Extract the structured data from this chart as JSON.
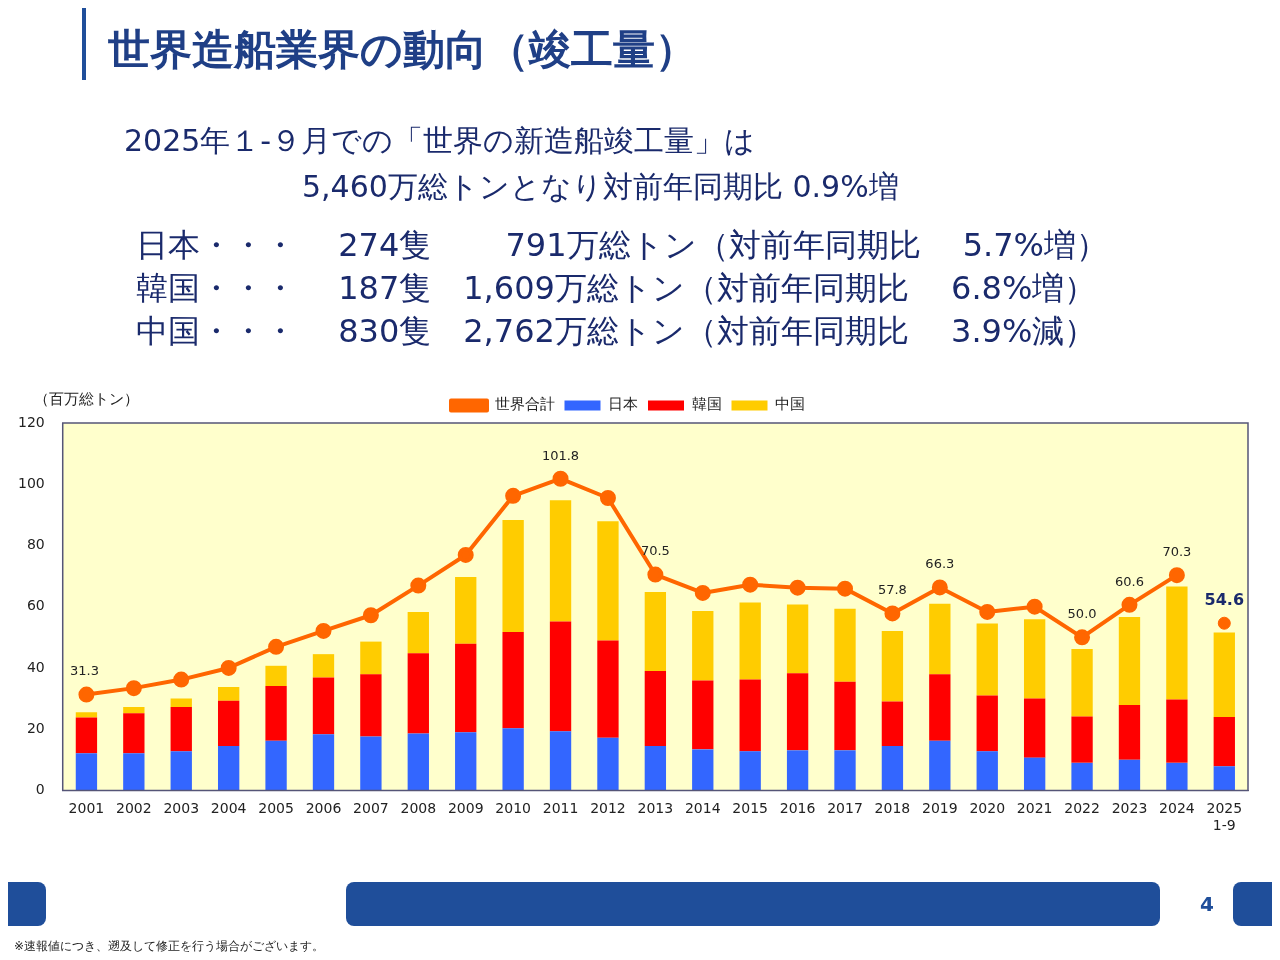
{
  "chart_data": {
    "type": "bar",
    "title": "世界造船業界の動向（竣工量）",
    "subtitle": "2025年１-９月での「世界の新造船竣工量」は\n5,460万総トンとなり対前年同期比 0.9%増",
    "annotations": [
      "日本・・・　 274隻　　 791万総トン（対前年同期比　 5.7%増）",
      "韓国・・・　 187隻　1,609万総トン（対前年同期比　 6.8%増）",
      "中国・・・　 830隻　2,762万総トン（対前年同期比　 3.9%減）",
      "※速報値につき、遡及して修正を行う場合がございます。",
      "4"
    ],
    "ylabel": "（百万総トン）",
    "categories": [
      "2001",
      "2002",
      "2003",
      "2004",
      "2005",
      "2006",
      "2007",
      "2008",
      "2009",
      "2010",
      "2011",
      "2012",
      "2013",
      "2014",
      "2015",
      "2016",
      "2017",
      "2018",
      "2019",
      "2020",
      "2021",
      "2022",
      "2023",
      "2024",
      "2025\n1-9"
    ],
    "stacked": true,
    "ylim": [
      0,
      120
    ],
    "yticks": [
      0,
      20,
      40,
      60,
      80,
      100,
      120
    ],
    "grid": false,
    "legend": "top",
    "series": [
      {
        "name": "日本",
        "color": "#3366ff",
        "values": [
          12.1,
          12.1,
          12.8,
          14.5,
          16.2,
          18.3,
          17.6,
          18.6,
          19.0,
          20.3,
          19.3,
          17.2,
          14.5,
          13.4,
          12.8,
          13.1,
          13.1,
          14.5,
          16.2,
          12.8,
          10.7,
          9.0,
          10.0,
          9.0,
          7.9
        ]
      },
      {
        "name": "韓国",
        "color": "#ff0000",
        "values": [
          11.7,
          13.1,
          14.4,
          14.8,
          17.9,
          18.6,
          20.3,
          26.2,
          28.9,
          31.4,
          35.9,
          31.8,
          24.5,
          22.5,
          23.4,
          25.2,
          22.4,
          14.5,
          21.7,
          18.2,
          19.3,
          15.1,
          17.9,
          20.7,
          16.1
        ]
      },
      {
        "name": "中国",
        "color": "#ffcc00",
        "values": [
          1.7,
          2.0,
          2.8,
          4.5,
          6.6,
          7.6,
          10.7,
          13.5,
          21.8,
          36.6,
          39.6,
          38.9,
          25.8,
          22.7,
          25.2,
          22.4,
          23.8,
          23.1,
          23.1,
          23.5,
          25.9,
          22.1,
          28.7,
          36.9,
          27.6
        ]
      },
      {
        "name": "世界合計",
        "type": "line",
        "color": "#ff6600",
        "marker": "circle",
        "values": [
          31.3,
          33.4,
          36.2,
          40.0,
          46.9,
          52.1,
          57.2,
          66.9,
          76.9,
          96.2,
          101.8,
          95.5,
          70.5,
          64.5,
          67.2,
          66.2,
          65.9,
          57.8,
          66.3,
          58.3,
          60.0,
          50.0,
          60.6,
          70.3,
          null
        ],
        "value_labels": [
          "31.3",
          null,
          null,
          null,
          null,
          null,
          null,
          null,
          null,
          null,
          "101.8",
          null,
          "70.5",
          null,
          null,
          null,
          null,
          "57.8",
          "66.3",
          null,
          null,
          "50.0",
          "60.6",
          "70.3",
          null
        ]
      },
      {
        "type": "scatter",
        "color": "#ff6600",
        "marker": "circle",
        "values": [
          null,
          null,
          null,
          null,
          null,
          null,
          null,
          null,
          null,
          null,
          null,
          null,
          null,
          null,
          null,
          null,
          null,
          null,
          null,
          null,
          null,
          null,
          null,
          null,
          54.6
        ],
        "value_labels": [
          null,
          null,
          null,
          null,
          null,
          null,
          null,
          null,
          null,
          null,
          null,
          null,
          null,
          null,
          null,
          null,
          null,
          null,
          null,
          null,
          null,
          null,
          null,
          null,
          "54.6"
        ]
      }
    ]
  }
}
